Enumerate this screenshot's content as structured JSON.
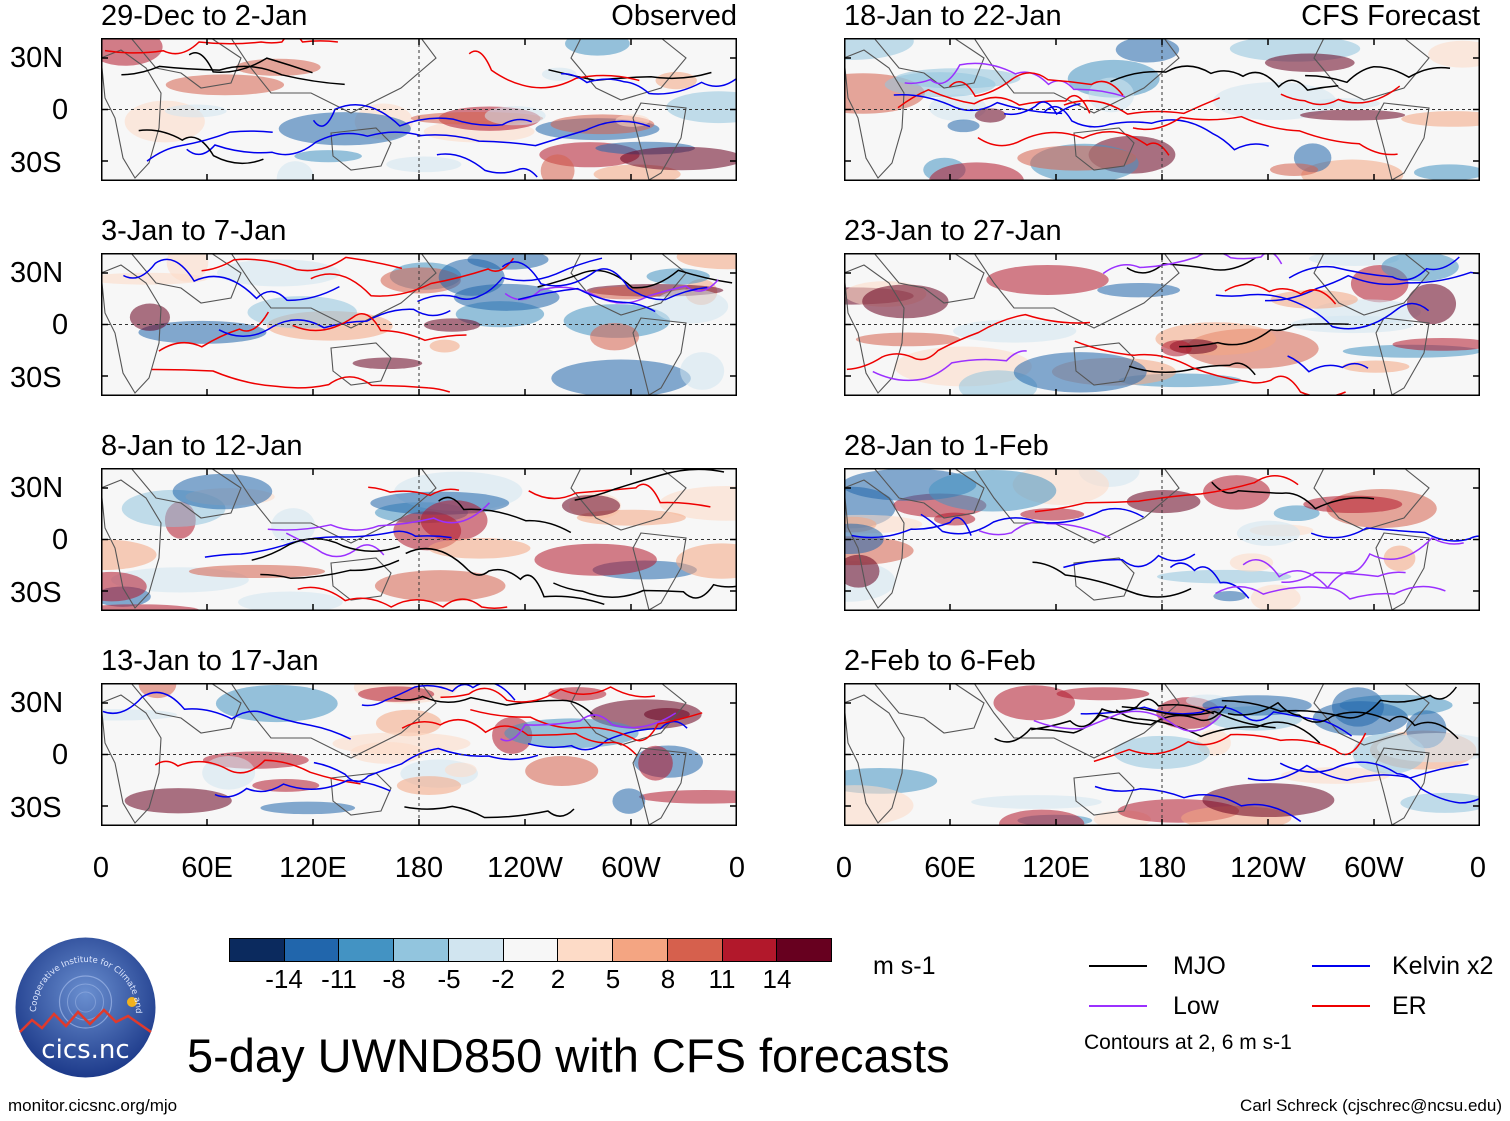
{
  "panels": [
    {
      "id": "p1",
      "date": "29-Dec to 2-Jan",
      "label": "Observed"
    },
    {
      "id": "p2",
      "date": "18-Jan to 22-Jan",
      "label": "CFS Forecast"
    },
    {
      "id": "p3",
      "date": "3-Jan to 7-Jan",
      "label": ""
    },
    {
      "id": "p4",
      "date": "23-Jan to 27-Jan",
      "label": ""
    },
    {
      "id": "p5",
      "date": "8-Jan to 12-Jan",
      "label": ""
    },
    {
      "id": "p6",
      "date": "28-Jan to 1-Feb",
      "label": ""
    },
    {
      "id": "p7",
      "date": "13-Jan to 17-Jan",
      "label": ""
    },
    {
      "id": "p8",
      "date": "2-Feb to 6-Feb",
      "label": ""
    }
  ],
  "lat_labels": [
    "30N",
    "0",
    "30S"
  ],
  "lon_labels": [
    "0",
    "60E",
    "120E",
    "180",
    "120W",
    "60W",
    "0"
  ],
  "colorbar": {
    "colors": [
      "#0b2a5e",
      "#2166ac",
      "#4393c3",
      "#92c5de",
      "#d1e5f0",
      "#f7f7f7",
      "#fddbc7",
      "#f4a582",
      "#d6604d",
      "#b2182b",
      "#67001f"
    ],
    "labels": [
      "-14",
      "-11",
      "-8",
      "-5",
      "-2",
      "2",
      "5",
      "8",
      "11",
      "14"
    ],
    "units": "m s-1"
  },
  "legend": [
    {
      "name": "MJO",
      "color": "#000000"
    },
    {
      "name": "Kelvin x2",
      "color": "#0000ee"
    },
    {
      "name": "Low",
      "color": "#9b30ff"
    },
    {
      "name": "ER",
      "color": "#ee0000"
    }
  ],
  "contour_note": "Contours at 2, 6 m s-1",
  "title": "5-day UWND850 with CFS forecasts",
  "logo_text": "cics.nc",
  "logo_ring": "Cooperative Institute for Climate and Satellites",
  "footer_left": "monitor.cicsnc.org/mjo",
  "footer_right": "Carl Schreck (cjschrec@ncsu.edu)"
}
